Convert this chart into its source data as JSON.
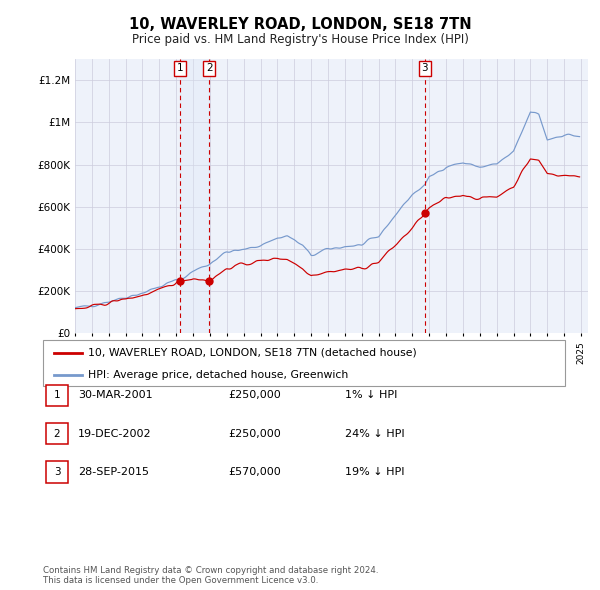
{
  "title": "10, WAVERLEY ROAD, LONDON, SE18 7TN",
  "subtitle": "Price paid vs. HM Land Registry's House Price Index (HPI)",
  "ylim": [
    0,
    1300000
  ],
  "yticks": [
    0,
    200000,
    400000,
    600000,
    800000,
    1000000,
    1200000
  ],
  "ytick_labels": [
    "£0",
    "£200K",
    "£400K",
    "£600K",
    "£800K",
    "£1M",
    "£1.2M"
  ],
  "background_color": "#ffffff",
  "plot_bg_color": "#eef2fa",
  "grid_color": "#ccccdd",
  "line_color_red": "#cc0000",
  "line_color_blue": "#7799cc",
  "sale_marker_color": "#cc0000",
  "vline_color": "#cc0000",
  "vspan_color": "#dde8f8",
  "transactions": [
    {
      "date": "2001-03-30",
      "price": 250000,
      "label": "1"
    },
    {
      "date": "2002-12-19",
      "price": 250000,
      "label": "2"
    },
    {
      "date": "2015-09-28",
      "price": 570000,
      "label": "3"
    }
  ],
  "legend_entries": [
    "10, WAVERLEY ROAD, LONDON, SE18 7TN (detached house)",
    "HPI: Average price, detached house, Greenwich"
  ],
  "table_rows": [
    {
      "label": "1",
      "date": "30-MAR-2001",
      "price": "£250,000",
      "hpi": "1% ↓ HPI"
    },
    {
      "label": "2",
      "date": "19-DEC-2002",
      "price": "£250,000",
      "hpi": "24% ↓ HPI"
    },
    {
      "label": "3",
      "date": "28-SEP-2015",
      "price": "£570,000",
      "hpi": "19% ↓ HPI"
    }
  ],
  "footer": "Contains HM Land Registry data © Crown copyright and database right 2024.\nThis data is licensed under the Open Government Licence v3.0."
}
